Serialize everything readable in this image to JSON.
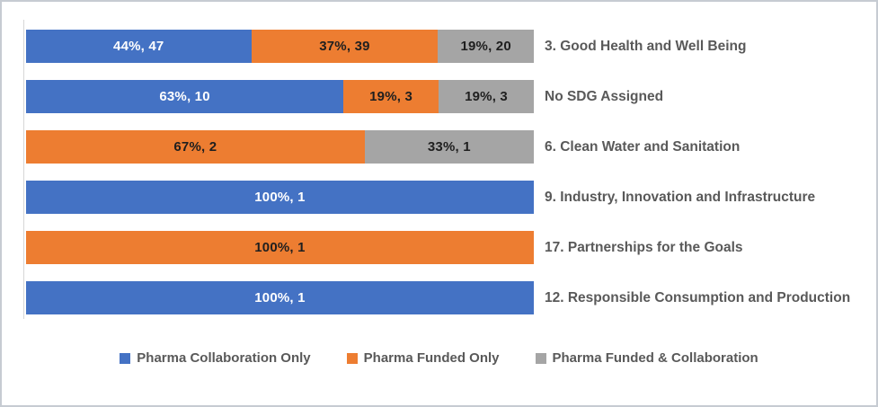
{
  "chart_data": {
    "type": "bar",
    "orientation": "horizontal-stacked",
    "title": "",
    "xlabel": "",
    "ylabel": "",
    "grid": false,
    "axes_hidden": true,
    "legend_position": "bottom",
    "segment_label_format": "{percent}%, {count}",
    "categories": [
      "3. Good Health and Well Being",
      "No SDG Assigned",
      "6. Clean Water and Sanitation",
      "9. Industry, Innovation and Infrastructure",
      "17. Partnerships for the Goals",
      "12. Responsible Consumption and Production"
    ],
    "series": [
      {
        "name": "Pharma Collaboration Only",
        "color": "#4472C4",
        "label_color": "#FFFFFF",
        "counts": [
          47,
          10,
          0,
          1,
          0,
          1
        ],
        "percents": [
          44,
          63,
          0,
          100,
          0,
          100
        ]
      },
      {
        "name": "Pharma Funded Only",
        "color": "#ED7D31",
        "label_color": "#1F1F1F",
        "counts": [
          39,
          3,
          2,
          0,
          1,
          0
        ],
        "percents": [
          37,
          19,
          67,
          0,
          100,
          0
        ]
      },
      {
        "name": "Pharma Funded & Collaboration",
        "color": "#A5A5A5",
        "label_color": "#1F1F1F",
        "counts": [
          20,
          3,
          1,
          0,
          0,
          0
        ],
        "percents": [
          19,
          19,
          33,
          0,
          0,
          0
        ]
      }
    ],
    "segment_labels": [
      [
        "44%, 47",
        "37%, 39",
        "19%, 20"
      ],
      [
        "63%, 10",
        "19%, 3",
        "19%, 3"
      ],
      [
        "",
        "67%, 2",
        "33%, 1"
      ],
      [
        "100%, 1",
        "",
        ""
      ],
      [
        "",
        "100%, 1",
        ""
      ],
      [
        "100%, 1",
        "",
        ""
      ]
    ]
  }
}
